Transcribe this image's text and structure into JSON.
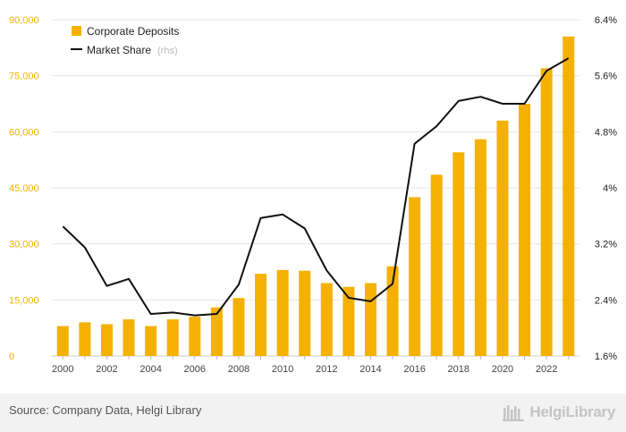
{
  "chart_data": {
    "type": "bar",
    "categories": [
      "2000",
      "2001",
      "2002",
      "2003",
      "2004",
      "2005",
      "2006",
      "2007",
      "2008",
      "2009",
      "2010",
      "2011",
      "2012",
      "2013",
      "2014",
      "2015",
      "2016",
      "2017",
      "2018",
      "2019",
      "2020",
      "2021",
      "2022",
      "2023"
    ],
    "x_tick_labels": [
      "2000",
      "2002",
      "2004",
      "2006",
      "2008",
      "2010",
      "2012",
      "2014",
      "2016",
      "2018",
      "2020",
      "2022"
    ],
    "series": [
      {
        "name": "Corporate Deposits",
        "type": "bar",
        "axis": "left",
        "color": "#f5b100",
        "values": [
          8000,
          9000,
          8500,
          9800,
          8000,
          9800,
          10500,
          13000,
          15500,
          22000,
          23000,
          22800,
          19500,
          18500,
          19500,
          24000,
          42500,
          48500,
          54500,
          58000,
          63000,
          67500,
          77000,
          85500
        ]
      },
      {
        "name": "Market Share",
        "type": "line",
        "axis": "right",
        "color": "#111111",
        "values": [
          3.45,
          3.15,
          2.6,
          2.7,
          2.2,
          2.22,
          2.18,
          2.2,
          2.62,
          3.57,
          3.62,
          3.42,
          2.82,
          2.43,
          2.38,
          2.63,
          4.63,
          4.88,
          5.24,
          5.3,
          5.2,
          5.2,
          5.67,
          5.85
        ]
      }
    ],
    "legend": [
      "Corporate Deposits",
      "Market Share"
    ],
    "legend_suffix": "(rhs)",
    "legend_position": "top-left",
    "y_left": {
      "ylim": [
        0,
        90000
      ],
      "ticks": [
        "0",
        "15,000",
        "30,000",
        "45,000",
        "60,000",
        "75,000",
        "90,000"
      ],
      "tick_values": [
        0,
        15000,
        30000,
        45000,
        60000,
        75000,
        90000
      ],
      "color": "#f5b100"
    },
    "y_right": {
      "ylim": [
        1.6,
        6.4
      ],
      "ticks": [
        "1.6%",
        "2.4%",
        "3.2%",
        "4%",
        "4.8%",
        "5.6%",
        "6.4%"
      ],
      "tick_values": [
        1.6,
        2.4,
        3.2,
        4.0,
        4.8,
        5.6,
        6.4
      ]
    },
    "grid": true,
    "title": "",
    "xlabel": "",
    "ylabel": ""
  },
  "footer": {
    "source": "Source: Company Data, Helgi Library",
    "logo_text": "HelgiLibrary"
  }
}
